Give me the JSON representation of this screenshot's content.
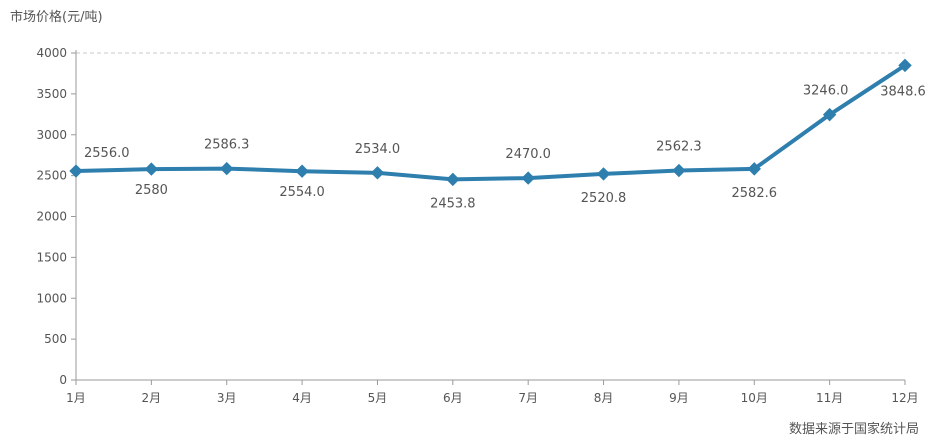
{
  "chart_data": {
    "type": "line",
    "title": "",
    "ylabel": "市场价格(元/吨)",
    "xlabel": "",
    "source_note": "数据来源于国家统计局",
    "categories": [
      "1月",
      "2月",
      "3月",
      "4月",
      "5月",
      "6月",
      "7月",
      "8月",
      "9月",
      "10月",
      "11月",
      "12月"
    ],
    "series": [
      {
        "values": [
          2556.0,
          2580,
          2586.3,
          2554.0,
          2534.0,
          2453.8,
          2470.0,
          2520.8,
          2562.3,
          2582.6,
          3246.0,
          3848.6
        ],
        "labels": [
          "2556.0",
          "2580",
          "2586.3",
          "2554.0",
          "2534.0",
          "2453.8",
          "2470.0",
          "2520.8",
          "2562.3",
          "2582.6",
          "3246.0",
          "3848.6"
        ]
      }
    ],
    "ylim": [
      0,
      4000
    ],
    "yticks": [
      "0",
      "500",
      "1000",
      "1500",
      "2000",
      "2500",
      "3000",
      "3500",
      "4000"
    ],
    "grid": false,
    "line_color": "#2E7FAE",
    "axis_color": "#9a9a9a",
    "label_color": "#555555"
  }
}
